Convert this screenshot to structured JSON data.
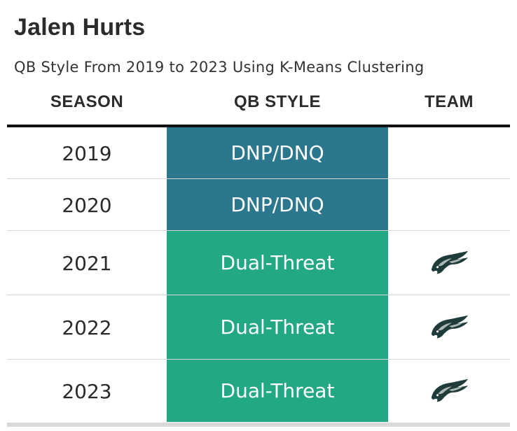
{
  "title": "Jalen Hurts",
  "subtitle": "QB Style From 2019 to 2023 Using K-Means Clustering",
  "columns": {
    "season": "SEASON",
    "qb_style": "QB STYLE",
    "team": "TEAM"
  },
  "colors": {
    "dnp": "#2b778e",
    "dual_threat": "#23a886",
    "eagle_dark": "#1f3b3a",
    "eagle_light": "#a9b7b5"
  },
  "rows": [
    {
      "season": "2019",
      "qb_style": "DNP/DNQ",
      "style_color": "#2b778e",
      "team_icon": ""
    },
    {
      "season": "2020",
      "qb_style": "DNP/DNQ",
      "style_color": "#2b778e",
      "team_icon": ""
    },
    {
      "season": "2021",
      "qb_style": "Dual-Threat",
      "style_color": "#23a886",
      "team_icon": "eagles-logo-icon"
    },
    {
      "season": "2022",
      "qb_style": "Dual-Threat",
      "style_color": "#23a886",
      "team_icon": "eagles-logo-icon"
    },
    {
      "season": "2023",
      "qb_style": "Dual-Threat",
      "style_color": "#23a886",
      "team_icon": "eagles-logo-icon"
    }
  ]
}
